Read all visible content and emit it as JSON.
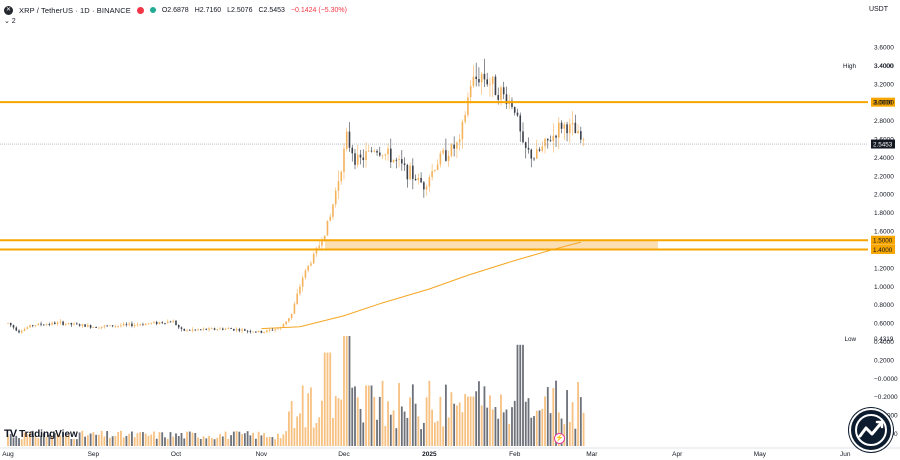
{
  "header": {
    "symbol": "XRP / TetherUS · 1D · BINANCE",
    "open": "O2.6878",
    "high": "H2.7160",
    "low": "L2.5076",
    "close": "C2.5453",
    "change": "−0.1424 (−5.30%)",
    "indicator_toggle": "⌄ 2",
    "currency": "USDT"
  },
  "brand": {
    "text": "TradingView",
    "logo_icon": "tradingview-logo-icon"
  },
  "colors": {
    "up": "#f5b25b",
    "down": "#3a3f4a",
    "level": "#f7a600",
    "zone_fill": "#f9d49a",
    "ma": "#f5a623",
    "vol_up": "#f7c182",
    "vol_down": "#6d7179",
    "watermark": "#0d1b2e"
  },
  "chart_data": {
    "type": "candlestick",
    "price_axis": {
      "ticks": [
        "3.6000",
        "3.4000",
        "3.2000",
        "3.0000",
        "2.8000",
        "2.6000",
        "2.4000",
        "2.2000",
        "2.0000",
        "1.8000",
        "1.6000",
        "1.5000",
        "1.4000",
        "1.2000",
        "1.0000",
        "0.8000",
        "0.6000",
        "0.4000",
        "0.2000",
        "−0.0000",
        "−0.2000",
        "−0.4000",
        "−0.6000"
      ],
      "range": [
        -0.6,
        3.9
      ]
    },
    "time_axis": {
      "labels": [
        "Aug",
        "Sep",
        "Oct",
        "Nov",
        "Dec",
        "2025",
        "Feb",
        "Mar",
        "Apr",
        "May",
        "Jun"
      ],
      "range": [
        "2024-08-01",
        "2025-06-10"
      ]
    },
    "markers": [
      {
        "label": "High",
        "value": "3.4000"
      },
      {
        "label": "Low",
        "value": "0.4319"
      }
    ],
    "current_price": {
      "value": 2.5453,
      "label": "2.5453"
    },
    "horizontal_levels": [
      {
        "value": 3.0,
        "label": "3.0000"
      }
    ],
    "zone": {
      "from": 1.4,
      "to": 1.5,
      "labels": [
        "1.5000",
        "1.4000"
      ],
      "start": "2024-12-01",
      "end": "2025-03-25"
    },
    "moving_average": [
      {
        "date": "2024-11-01",
        "value": 0.54
      },
      {
        "date": "2024-11-15",
        "value": 0.56
      },
      {
        "date": "2024-12-01",
        "value": 0.68
      },
      {
        "date": "2024-12-15",
        "value": 0.82
      },
      {
        "date": "2025-01-01",
        "value": 0.97
      },
      {
        "date": "2025-01-15",
        "value": 1.12
      },
      {
        "date": "2025-02-01",
        "value": 1.28
      },
      {
        "date": "2025-02-15",
        "value": 1.4
      },
      {
        "date": "2025-02-25",
        "value": 1.48
      }
    ],
    "price_path": [
      {
        "date": "2024-08-01",
        "close": 0.6
      },
      {
        "date": "2024-08-05",
        "close": 0.51
      },
      {
        "date": "2024-08-10",
        "close": 0.58
      },
      {
        "date": "2024-08-20",
        "close": 0.6
      },
      {
        "date": "2024-09-01",
        "close": 0.56
      },
      {
        "date": "2024-09-15",
        "close": 0.58
      },
      {
        "date": "2024-09-30",
        "close": 0.62
      },
      {
        "date": "2024-10-03",
        "close": 0.52
      },
      {
        "date": "2024-10-20",
        "close": 0.54
      },
      {
        "date": "2024-11-01",
        "close": 0.5
      },
      {
        "date": "2024-11-08",
        "close": 0.55
      },
      {
        "date": "2024-11-12",
        "close": 0.7
      },
      {
        "date": "2024-11-16",
        "close": 1.1
      },
      {
        "date": "2024-11-22",
        "close": 1.45
      },
      {
        "date": "2024-11-26",
        "close": 1.75
      },
      {
        "date": "2024-12-02",
        "close": 2.6
      },
      {
        "date": "2024-12-06",
        "close": 2.35
      },
      {
        "date": "2024-12-12",
        "close": 2.5
      },
      {
        "date": "2024-12-18",
        "close": 2.4
      },
      {
        "date": "2024-12-24",
        "close": 2.25
      },
      {
        "date": "2024-12-30",
        "close": 2.1
      },
      {
        "date": "2025-01-05",
        "close": 2.4
      },
      {
        "date": "2025-01-12",
        "close": 2.55
      },
      {
        "date": "2025-01-16",
        "close": 3.2
      },
      {
        "date": "2025-01-20",
        "close": 3.3
      },
      {
        "date": "2025-01-27",
        "close": 3.1
      },
      {
        "date": "2025-02-01",
        "close": 2.95
      },
      {
        "date": "2025-02-04",
        "close": 2.5
      },
      {
        "date": "2025-02-08",
        "close": 2.4
      },
      {
        "date": "2025-02-14",
        "close": 2.6
      },
      {
        "date": "2025-02-18",
        "close": 2.75
      },
      {
        "date": "2025-02-22",
        "close": 2.7
      },
      {
        "date": "2025-02-26",
        "close": 2.55
      }
    ],
    "volume_spikes": [
      {
        "date": "2024-11-25",
        "rel": 0.85
      },
      {
        "date": "2024-12-02",
        "rel": 1.0
      },
      {
        "date": "2024-12-10",
        "rel": 0.55
      },
      {
        "date": "2025-01-16",
        "rel": 0.45
      },
      {
        "date": "2025-02-03",
        "rel": 0.92
      }
    ]
  }
}
